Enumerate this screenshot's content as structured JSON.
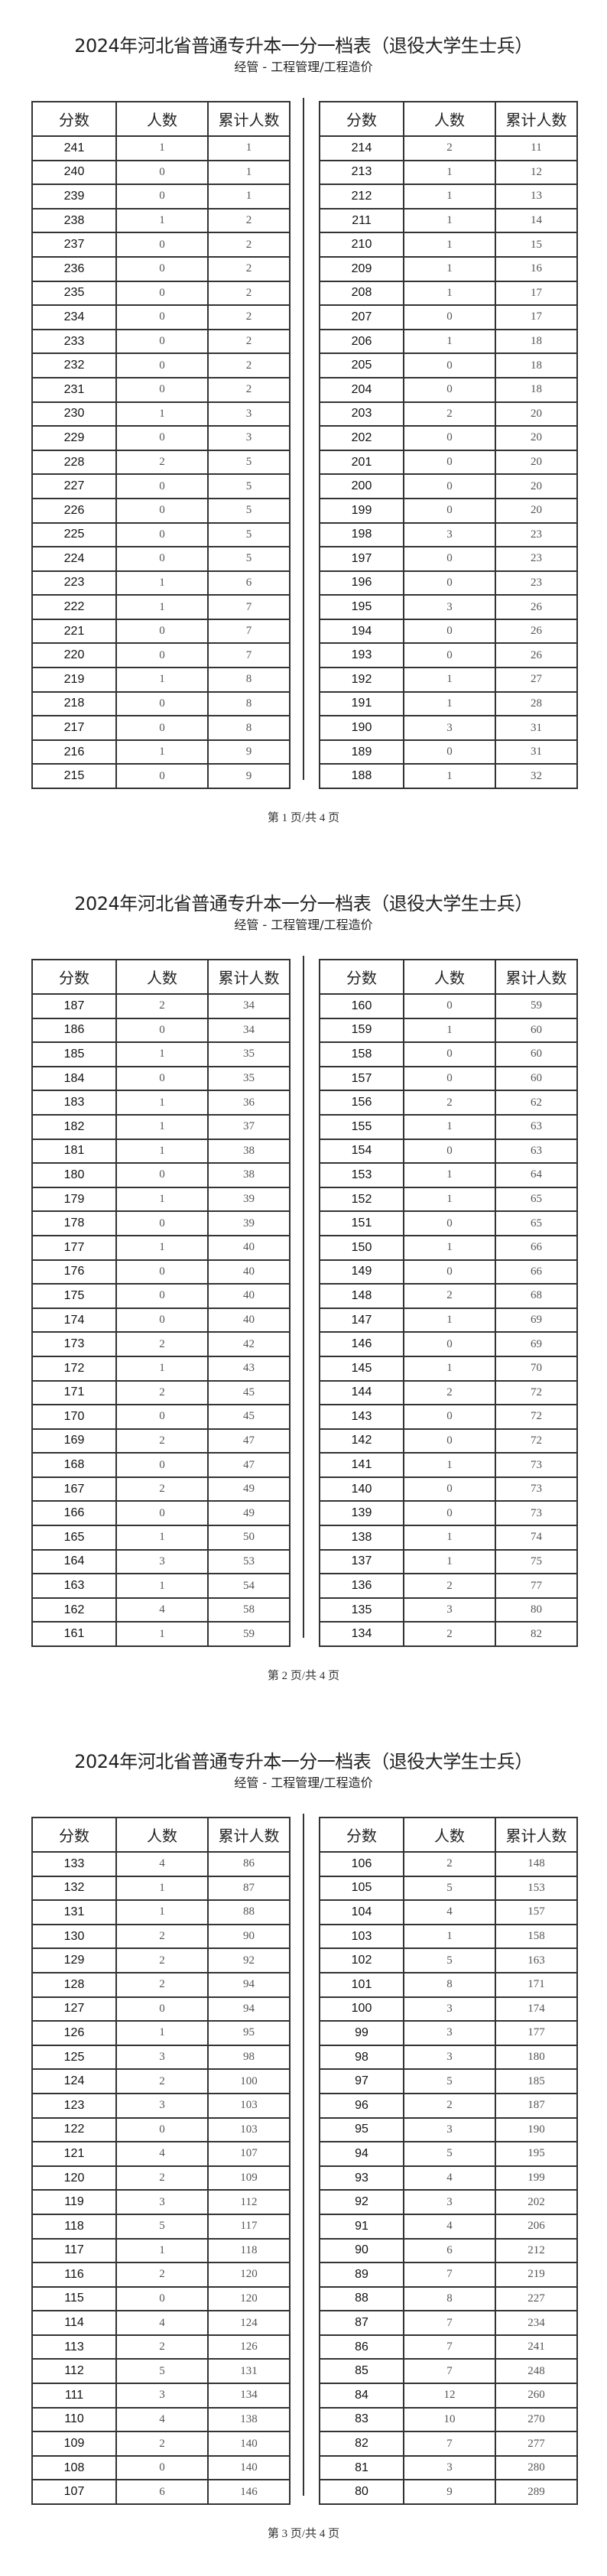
{
  "document": {
    "title": "2024年河北省普通专升本一分一档表（退役大学生士兵）",
    "subtitle": "经管 - 工程管理/工程造价",
    "columns": [
      "分数",
      "人数",
      "累计人数"
    ]
  },
  "pages": [
    {
      "footer": "第 1 页/共 4 页",
      "left_rows": [
        [
          241,
          1,
          1
        ],
        [
          240,
          0,
          1
        ],
        [
          239,
          0,
          1
        ],
        [
          238,
          1,
          2
        ],
        [
          237,
          0,
          2
        ],
        [
          236,
          0,
          2
        ],
        [
          235,
          0,
          2
        ],
        [
          234,
          0,
          2
        ],
        [
          233,
          0,
          2
        ],
        [
          232,
          0,
          2
        ],
        [
          231,
          0,
          2
        ],
        [
          230,
          1,
          3
        ],
        [
          229,
          0,
          3
        ],
        [
          228,
          2,
          5
        ],
        [
          227,
          0,
          5
        ],
        [
          226,
          0,
          5
        ],
        [
          225,
          0,
          5
        ],
        [
          224,
          0,
          5
        ],
        [
          223,
          1,
          6
        ],
        [
          222,
          1,
          7
        ],
        [
          221,
          0,
          7
        ],
        [
          220,
          0,
          7
        ],
        [
          219,
          1,
          8
        ],
        [
          218,
          0,
          8
        ],
        [
          217,
          0,
          8
        ],
        [
          216,
          1,
          9
        ],
        [
          215,
          0,
          9
        ]
      ],
      "right_rows": [
        [
          214,
          2,
          11
        ],
        [
          213,
          1,
          12
        ],
        [
          212,
          1,
          13
        ],
        [
          211,
          1,
          14
        ],
        [
          210,
          1,
          15
        ],
        [
          209,
          1,
          16
        ],
        [
          208,
          1,
          17
        ],
        [
          207,
          0,
          17
        ],
        [
          206,
          1,
          18
        ],
        [
          205,
          0,
          18
        ],
        [
          204,
          0,
          18
        ],
        [
          203,
          2,
          20
        ],
        [
          202,
          0,
          20
        ],
        [
          201,
          0,
          20
        ],
        [
          200,
          0,
          20
        ],
        [
          199,
          0,
          20
        ],
        [
          198,
          3,
          23
        ],
        [
          197,
          0,
          23
        ],
        [
          196,
          0,
          23
        ],
        [
          195,
          3,
          26
        ],
        [
          194,
          0,
          26
        ],
        [
          193,
          0,
          26
        ],
        [
          192,
          1,
          27
        ],
        [
          191,
          1,
          28
        ],
        [
          190,
          3,
          31
        ],
        [
          189,
          0,
          31
        ],
        [
          188,
          1,
          32
        ]
      ]
    },
    {
      "footer": "第 2 页/共 4 页",
      "left_rows": [
        [
          187,
          2,
          34
        ],
        [
          186,
          0,
          34
        ],
        [
          185,
          1,
          35
        ],
        [
          184,
          0,
          35
        ],
        [
          183,
          1,
          36
        ],
        [
          182,
          1,
          37
        ],
        [
          181,
          1,
          38
        ],
        [
          180,
          0,
          38
        ],
        [
          179,
          1,
          39
        ],
        [
          178,
          0,
          39
        ],
        [
          177,
          1,
          40
        ],
        [
          176,
          0,
          40
        ],
        [
          175,
          0,
          40
        ],
        [
          174,
          0,
          40
        ],
        [
          173,
          2,
          42
        ],
        [
          172,
          1,
          43
        ],
        [
          171,
          2,
          45
        ],
        [
          170,
          0,
          45
        ],
        [
          169,
          2,
          47
        ],
        [
          168,
          0,
          47
        ],
        [
          167,
          2,
          49
        ],
        [
          166,
          0,
          49
        ],
        [
          165,
          1,
          50
        ],
        [
          164,
          3,
          53
        ],
        [
          163,
          1,
          54
        ],
        [
          162,
          4,
          58
        ],
        [
          161,
          1,
          59
        ]
      ],
      "right_rows": [
        [
          160,
          0,
          59
        ],
        [
          159,
          1,
          60
        ],
        [
          158,
          0,
          60
        ],
        [
          157,
          0,
          60
        ],
        [
          156,
          2,
          62
        ],
        [
          155,
          1,
          63
        ],
        [
          154,
          0,
          63
        ],
        [
          153,
          1,
          64
        ],
        [
          152,
          1,
          65
        ],
        [
          151,
          0,
          65
        ],
        [
          150,
          1,
          66
        ],
        [
          149,
          0,
          66
        ],
        [
          148,
          2,
          68
        ],
        [
          147,
          1,
          69
        ],
        [
          146,
          0,
          69
        ],
        [
          145,
          1,
          70
        ],
        [
          144,
          2,
          72
        ],
        [
          143,
          0,
          72
        ],
        [
          142,
          0,
          72
        ],
        [
          141,
          1,
          73
        ],
        [
          140,
          0,
          73
        ],
        [
          139,
          0,
          73
        ],
        [
          138,
          1,
          74
        ],
        [
          137,
          1,
          75
        ],
        [
          136,
          2,
          77
        ],
        [
          135,
          3,
          80
        ],
        [
          134,
          2,
          82
        ]
      ]
    },
    {
      "footer": "第 3 页/共 4 页",
      "left_rows": [
        [
          133,
          4,
          86
        ],
        [
          132,
          1,
          87
        ],
        [
          131,
          1,
          88
        ],
        [
          130,
          2,
          90
        ],
        [
          129,
          2,
          92
        ],
        [
          128,
          2,
          94
        ],
        [
          127,
          0,
          94
        ],
        [
          126,
          1,
          95
        ],
        [
          125,
          3,
          98
        ],
        [
          124,
          2,
          100
        ],
        [
          123,
          3,
          103
        ],
        [
          122,
          0,
          103
        ],
        [
          121,
          4,
          107
        ],
        [
          120,
          2,
          109
        ],
        [
          119,
          3,
          112
        ],
        [
          118,
          5,
          117
        ],
        [
          117,
          1,
          118
        ],
        [
          116,
          2,
          120
        ],
        [
          115,
          0,
          120
        ],
        [
          114,
          4,
          124
        ],
        [
          113,
          2,
          126
        ],
        [
          112,
          5,
          131
        ],
        [
          111,
          3,
          134
        ],
        [
          110,
          4,
          138
        ],
        [
          109,
          2,
          140
        ],
        [
          108,
          0,
          140
        ],
        [
          107,
          6,
          146
        ]
      ],
      "right_rows": [
        [
          106,
          2,
          148
        ],
        [
          105,
          5,
          153
        ],
        [
          104,
          4,
          157
        ],
        [
          103,
          1,
          158
        ],
        [
          102,
          5,
          163
        ],
        [
          101,
          8,
          171
        ],
        [
          100,
          3,
          174
        ],
        [
          99,
          3,
          177
        ],
        [
          98,
          3,
          180
        ],
        [
          97,
          5,
          185
        ],
        [
          96,
          2,
          187
        ],
        [
          95,
          3,
          190
        ],
        [
          94,
          5,
          195
        ],
        [
          93,
          4,
          199
        ],
        [
          92,
          3,
          202
        ],
        [
          91,
          4,
          206
        ],
        [
          90,
          6,
          212
        ],
        [
          89,
          7,
          219
        ],
        [
          88,
          8,
          227
        ],
        [
          87,
          7,
          234
        ],
        [
          86,
          7,
          241
        ],
        [
          85,
          7,
          248
        ],
        [
          84,
          12,
          260
        ],
        [
          83,
          10,
          270
        ],
        [
          82,
          7,
          277
        ],
        [
          81,
          3,
          280
        ],
        [
          80,
          9,
          289
        ]
      ]
    }
  ]
}
